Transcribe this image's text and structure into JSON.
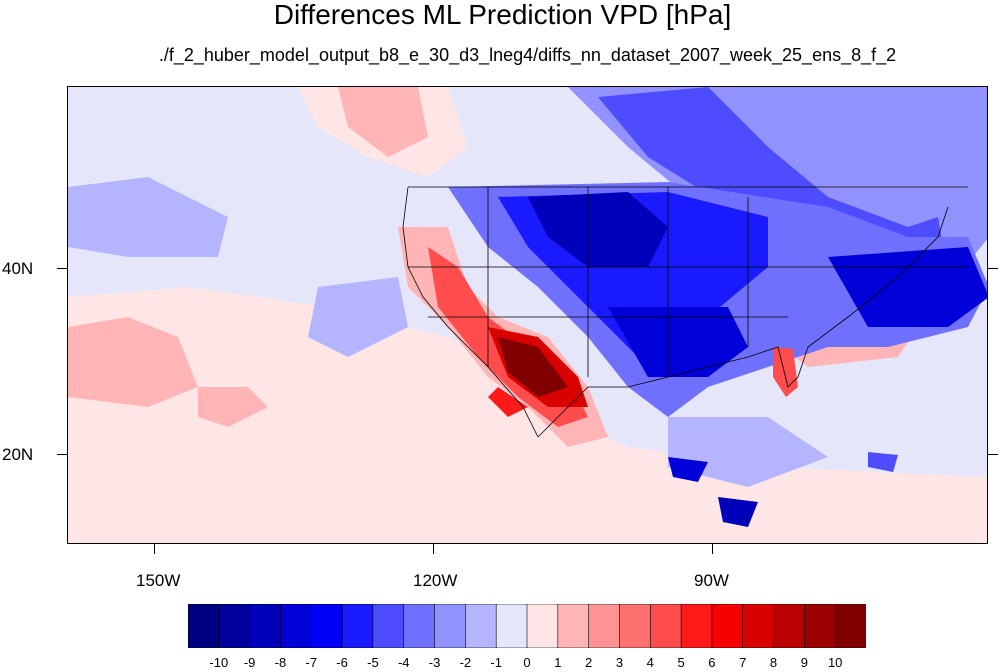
{
  "title": "Differences ML Prediction VPD [hPa]",
  "subtitle": "./f_2_huber_model_output_b8_e_30_d3_lneg4/diffs_nn_dataset_2007_week_25_ens_8_f_2",
  "map": {
    "x_axis_labels": [
      "150W",
      "120W",
      "90W"
    ],
    "y_axis_labels": [
      "40N",
      "20N"
    ],
    "region": "Continental United States and surrounding ocean"
  },
  "colorbar": {
    "labels": [
      "-10",
      "-9",
      "-8",
      "-7",
      "-6",
      "-5",
      "-4",
      "-3",
      "-2",
      "-1",
      "0",
      "1",
      "2",
      "3",
      "4",
      "5",
      "6",
      "7",
      "8",
      "9",
      "10"
    ],
    "colors": [
      "#000080",
      "#00009d",
      "#0000bb",
      "#0000d9",
      "#0000f6",
      "#1a1aff",
      "#4d4dff",
      "#7070ff",
      "#9292ff",
      "#b5b5ff",
      "#e6e6fa",
      "#ffe6e6",
      "#ffb5b5",
      "#ff9292",
      "#ff7070",
      "#ff4d4d",
      "#ff1a1a",
      "#f60000",
      "#d90000",
      "#bb0000",
      "#9d0000",
      "#800000"
    ]
  }
}
